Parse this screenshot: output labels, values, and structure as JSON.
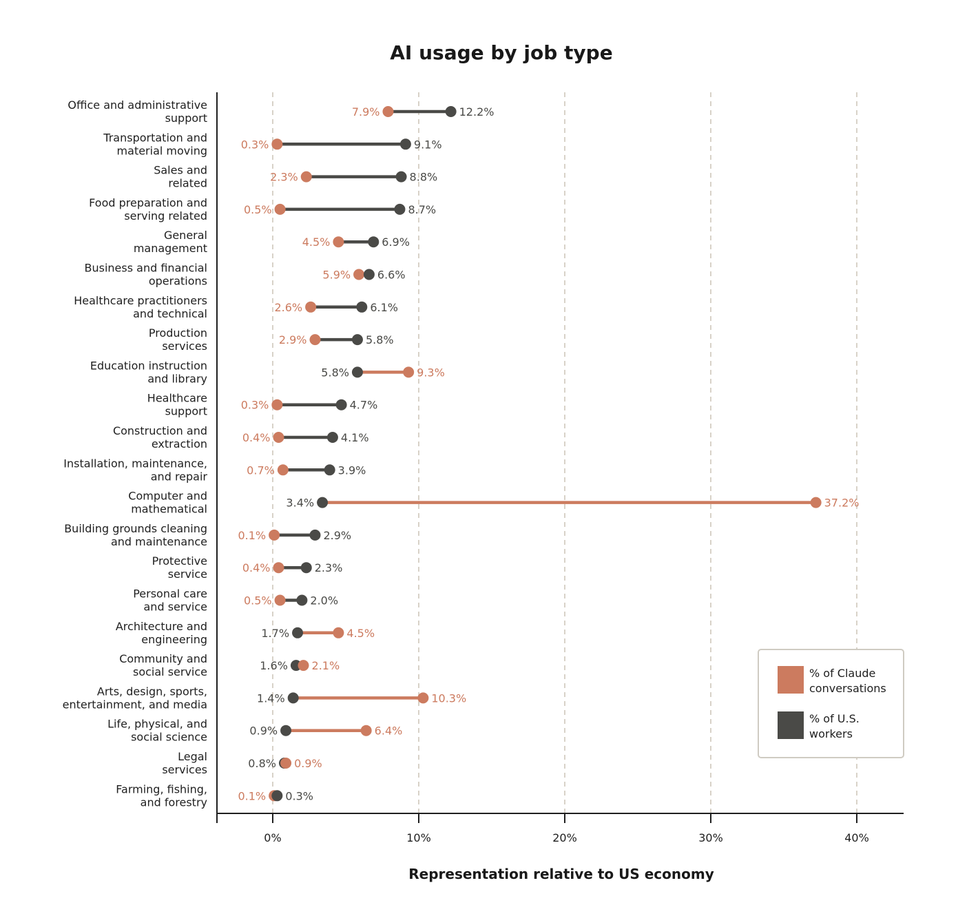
{
  "chart_data": {
    "type": "dumbbell",
    "title": "AI usage by job type",
    "xlabel": "Representation relative to US economy",
    "xlim": [
      -3.9,
      43
    ],
    "xticks": [
      0,
      10,
      20,
      30,
      40
    ],
    "xtick_labels": [
      "0%",
      "10%",
      "20%",
      "30%",
      "40%"
    ],
    "grid": "vertical dashed",
    "legend_position": "bottom-right",
    "colors": {
      "claude": "#cc7b5f",
      "workers": "#4a4a47",
      "grid": "#d8d2c8",
      "legend_border": "#cfcbc2"
    },
    "series": [
      {
        "key": "claude",
        "name": "% of Claude conversations",
        "legend_lines": [
          "% of Claude",
          "conversations"
        ]
      },
      {
        "key": "workers",
        "name": "% of U.S. workers",
        "legend_lines": [
          "% of U.S.",
          "workers"
        ]
      }
    ],
    "categories": [
      {
        "lines": [
          "Office and administrative",
          "support"
        ],
        "claude": 7.9,
        "workers": 12.2,
        "claude_label": "7.9%",
        "workers_label": "12.2%"
      },
      {
        "lines": [
          "Transportation and",
          "material moving"
        ],
        "claude": 0.3,
        "workers": 9.1,
        "claude_label": "0.3%",
        "workers_label": "9.1%"
      },
      {
        "lines": [
          "Sales and",
          "related"
        ],
        "claude": 2.3,
        "workers": 8.8,
        "claude_label": "2.3%",
        "workers_label": "8.8%"
      },
      {
        "lines": [
          "Food preparation and",
          "serving related"
        ],
        "claude": 0.5,
        "workers": 8.7,
        "claude_label": "0.5%",
        "workers_label": "8.7%"
      },
      {
        "lines": [
          "General",
          "management"
        ],
        "claude": 4.5,
        "workers": 6.9,
        "claude_label": "4.5%",
        "workers_label": "6.9%"
      },
      {
        "lines": [
          "Business and financial",
          "operations"
        ],
        "claude": 5.9,
        "workers": 6.6,
        "claude_label": "5.9%",
        "workers_label": "6.6%"
      },
      {
        "lines": [
          "Healthcare practitioners",
          "and technical"
        ],
        "claude": 2.6,
        "workers": 6.1,
        "claude_label": "2.6%",
        "workers_label": "6.1%"
      },
      {
        "lines": [
          "Production",
          "services"
        ],
        "claude": 2.9,
        "workers": 5.8,
        "claude_label": "2.9%",
        "workers_label": "5.8%"
      },
      {
        "lines": [
          "Education instruction",
          "and library"
        ],
        "claude": 9.3,
        "workers": 5.8,
        "claude_label": "9.3%",
        "workers_label": "5.8%"
      },
      {
        "lines": [
          "Healthcare",
          "support"
        ],
        "claude": 0.3,
        "workers": 4.7,
        "claude_label": "0.3%",
        "workers_label": "4.7%"
      },
      {
        "lines": [
          "Construction and",
          "extraction"
        ],
        "claude": 0.4,
        "workers": 4.1,
        "claude_label": "0.4%",
        "workers_label": "4.1%"
      },
      {
        "lines": [
          "Installation, maintenance,",
          "and repair"
        ],
        "claude": 0.7,
        "workers": 3.9,
        "claude_label": "0.7%",
        "workers_label": "3.9%"
      },
      {
        "lines": [
          "Computer and",
          "mathematical"
        ],
        "claude": 37.2,
        "workers": 3.4,
        "claude_label": "37.2%",
        "workers_label": "3.4%"
      },
      {
        "lines": [
          "Building grounds cleaning",
          "and maintenance"
        ],
        "claude": 0.1,
        "workers": 2.9,
        "claude_label": "0.1%",
        "workers_label": "2.9%"
      },
      {
        "lines": [
          "Protective",
          "service"
        ],
        "claude": 0.4,
        "workers": 2.3,
        "claude_label": "0.4%",
        "workers_label": "2.3%"
      },
      {
        "lines": [
          "Personal care",
          "and service"
        ],
        "claude": 0.5,
        "workers": 2.0,
        "claude_label": "0.5%",
        "workers_label": "2.0%"
      },
      {
        "lines": [
          "Architecture and",
          "engineering"
        ],
        "claude": 4.5,
        "workers": 1.7,
        "claude_label": "4.5%",
        "workers_label": "1.7%"
      },
      {
        "lines": [
          "Community and",
          "social service"
        ],
        "claude": 2.1,
        "workers": 1.6,
        "claude_label": "2.1%",
        "workers_label": "1.6%"
      },
      {
        "lines": [
          "Arts, design, sports,",
          "entertainment, and media"
        ],
        "claude": 10.3,
        "workers": 1.4,
        "claude_label": "10.3%",
        "workers_label": "1.4%"
      },
      {
        "lines": [
          "Life, physical, and",
          "social science"
        ],
        "claude": 6.4,
        "workers": 0.9,
        "claude_label": "6.4%",
        "workers_label": "0.9%"
      },
      {
        "lines": [
          "Legal",
          "services"
        ],
        "claude": 0.9,
        "workers": 0.8,
        "claude_label": "0.9%",
        "workers_label": "0.8%"
      },
      {
        "lines": [
          "Farming, fishing,",
          "and forestry"
        ],
        "claude": 0.1,
        "workers": 0.3,
        "claude_label": "0.1%",
        "workers_label": "0.3%"
      }
    ]
  }
}
